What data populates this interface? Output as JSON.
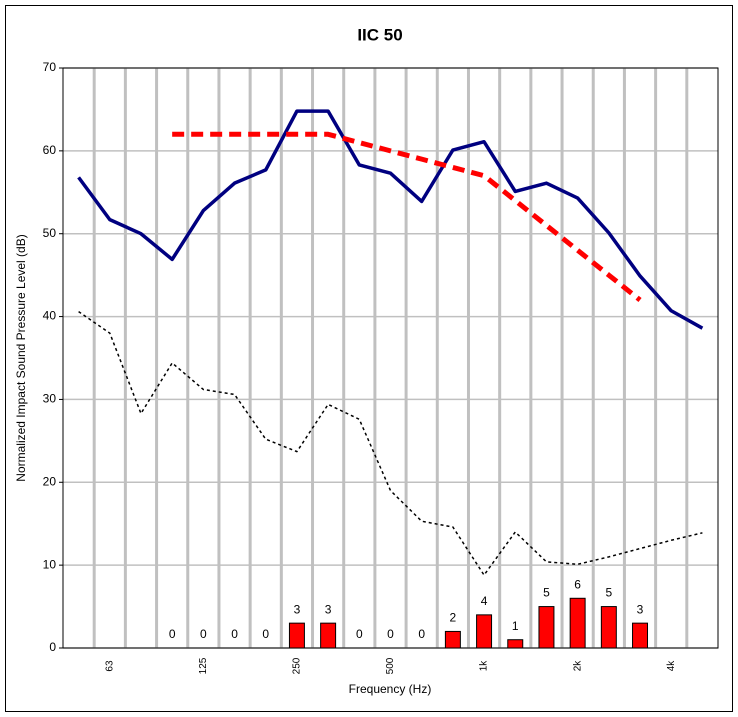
{
  "chart_data": {
    "type": "line",
    "title": "IIC 50",
    "x_label": "Frequency (Hz)",
    "y_label": "Normalized Impact Sound Pressure Level (dB)",
    "categories": [
      null,
      "63",
      null,
      null,
      "125",
      null,
      null,
      "250",
      null,
      null,
      "500",
      null,
      null,
      "1k",
      null,
      null,
      "2k",
      null,
      null,
      "4k",
      null
    ],
    "ylim": [
      0,
      70
    ],
    "yticks": [
      0,
      10,
      20,
      30,
      40,
      50,
      60,
      70
    ],
    "grid": true,
    "series": [
      {
        "kind": "line",
        "color": "#000080",
        "line_style": "solid",
        "line_width": 3.5,
        "values": [
          56.8,
          51.7,
          50.0,
          46.9,
          52.8,
          56.1,
          57.7,
          64.8,
          64.8,
          58.3,
          57.3,
          53.9,
          60.1,
          61.1,
          55.1,
          56.1,
          54.3,
          50.1,
          44.9,
          40.7,
          38.6
        ]
      },
      {
        "kind": "line",
        "color": "#ff0000",
        "line_style": "dashed",
        "line_width": 5,
        "values": [
          null,
          null,
          null,
          62,
          62,
          62,
          62,
          62,
          62,
          61,
          60,
          59,
          58,
          57,
          54,
          51,
          48,
          45,
          42,
          null,
          null
        ]
      },
      {
        "kind": "line",
        "color": "#000000",
        "line_style": "dotted",
        "line_width": 1.5,
        "values": [
          40.6,
          38.0,
          28.3,
          34.4,
          31.2,
          30.6,
          25.2,
          23.7,
          29.4,
          27.6,
          19.0,
          15.3,
          14.6,
          8.8,
          14.0,
          10.4,
          10.1,
          11.0,
          12.0,
          13.0,
          13.9
        ]
      },
      {
        "kind": "bar",
        "color": "#ff0000",
        "values": [
          null,
          null,
          null,
          0,
          0,
          0,
          0,
          3,
          3,
          0,
          0,
          0,
          2,
          4,
          1,
          5,
          6,
          5,
          3,
          null,
          null
        ]
      }
    ]
  }
}
